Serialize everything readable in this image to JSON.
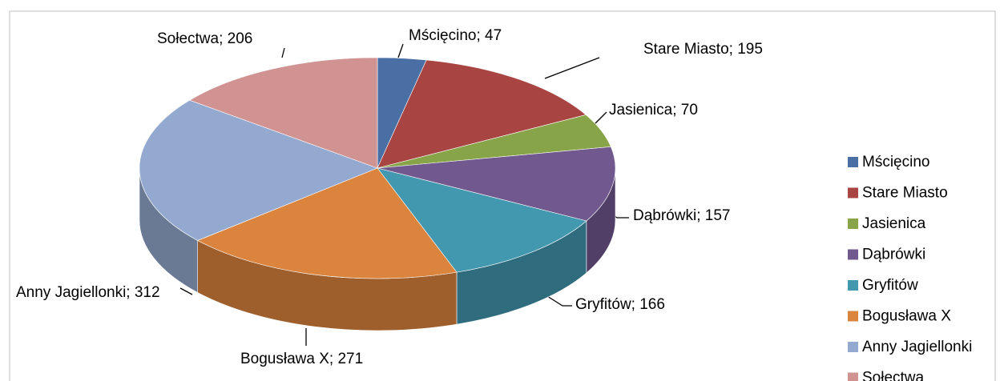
{
  "chart_data": {
    "type": "pie",
    "categories": [
      "Mścięcino",
      "Stare Miasto",
      "Jasienica",
      "Dąbrówki",
      "Gryfitów",
      "Bogusława X",
      "Anny Jagiellonki",
      "Sołectwa"
    ],
    "values": [
      47,
      195,
      70,
      157,
      166,
      271,
      312,
      206
    ],
    "value_labels": [
      "Mścięcino; 47",
      "Stare Miasto; 195",
      "Jasienica; 70",
      "Dąbrówki; 157",
      "Gryfitów; 166",
      "Bogusława X; 271",
      "Anny Jagiellonki; 312",
      "Sołectwa; 206"
    ],
    "colors": [
      "#4a6fa5",
      "#a84442",
      "#88a448",
      "#71588f",
      "#4198af",
      "#db843d",
      "#93a9cf",
      "#d09392"
    ],
    "legend": "right"
  }
}
